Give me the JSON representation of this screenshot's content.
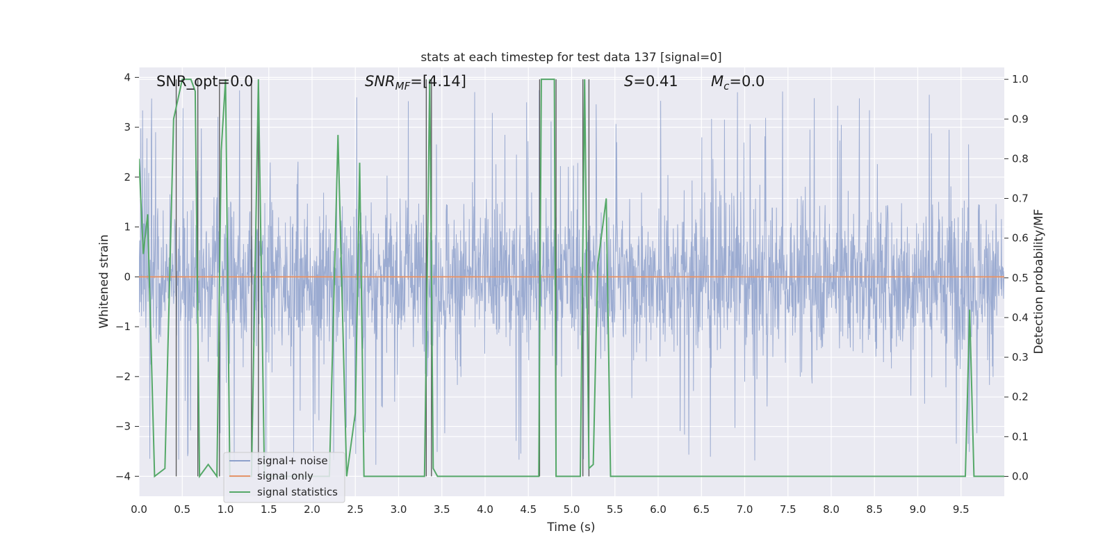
{
  "chart_data": {
    "type": "line",
    "title": "stats at each timestep for test data 137 [signal=0]",
    "xlabel": "Time (s)",
    "ylabel": "Whitened strain",
    "y2label": "Detection probability/MF",
    "xlim": [
      0,
      10
    ],
    "ylim": [
      -4.4,
      4.2
    ],
    "y2lim": [
      -0.05,
      1.03
    ],
    "xticks": [
      "0.0",
      "0.5",
      "1.0",
      "1.5",
      "2.0",
      "2.5",
      "3.0",
      "3.5",
      "4.0",
      "4.5",
      "5.0",
      "5.5",
      "6.0",
      "6.5",
      "7.0",
      "7.5",
      "8.0",
      "8.5",
      "9.0",
      "9.5"
    ],
    "yticks": [
      "−4",
      "−3",
      "−2",
      "−1",
      "0",
      "1",
      "2",
      "3",
      "4"
    ],
    "y2ticks": [
      "0.0",
      "0.1",
      "0.2",
      "0.3",
      "0.4",
      "0.5",
      "0.6",
      "0.7",
      "0.8",
      "0.9",
      "1.0"
    ],
    "grid": true,
    "legend_position": "lower-left",
    "annotations": {
      "snr_opt": "SNR_opt=0.0",
      "snr_mf_var": "SNR",
      "snr_mf_sub": "MF",
      "snr_mf_val": "=[4.14]",
      "s_var": "S",
      "s_val": "=0.41",
      "mc_var": "M",
      "mc_sub": "c",
      "mc_val": "=0.0"
    },
    "series": [
      {
        "name": "signal+ noise",
        "color": "#8da0cb",
        "kind": "noise",
        "envelope": 2.0,
        "peak_max": 3.8
      },
      {
        "name": "signal only",
        "color": "#e5946a",
        "kind": "constant",
        "value": 0.0
      },
      {
        "name": "signal statistics",
        "color": "#55a868",
        "kind": "line",
        "axis": "right",
        "x": [
          0.0,
          0.05,
          0.1,
          0.18,
          0.3,
          0.4,
          0.5,
          0.55,
          0.6,
          0.65,
          0.7,
          0.8,
          0.9,
          0.95,
          1.0,
          1.05,
          1.1,
          1.2,
          1.3,
          1.38,
          1.45,
          1.55,
          1.7,
          2.0,
          2.2,
          2.3,
          2.4,
          2.5,
          2.55,
          2.6,
          3.0,
          3.3,
          3.36,
          3.4,
          3.45,
          3.5,
          4.0,
          4.5,
          4.62,
          4.65,
          4.8,
          4.82,
          4.95,
          5.1,
          5.15,
          5.2,
          5.25,
          5.3,
          5.4,
          5.45,
          5.5,
          5.8,
          6.0,
          7.0,
          8.0,
          9.0,
          9.55,
          9.6,
          9.65,
          9.7,
          10.0
        ],
        "y": [
          0.8,
          0.56,
          0.66,
          0.0,
          0.02,
          0.9,
          1.0,
          1.0,
          1.0,
          0.97,
          0.0,
          0.03,
          0.0,
          0.82,
          1.0,
          0.0,
          0.0,
          0.0,
          0.0,
          1.0,
          0.0,
          0.0,
          0.0,
          0.0,
          0.0,
          0.86,
          0.0,
          0.16,
          0.79,
          0.0,
          0.0,
          0.0,
          1.0,
          0.02,
          0.0,
          0.0,
          0.0,
          0.0,
          0.0,
          1.0,
          1.0,
          0.0,
          0.0,
          0.0,
          1.0,
          0.02,
          0.03,
          0.53,
          0.7,
          0.0,
          0.0,
          0.0,
          0.0,
          0.0,
          0.0,
          0.0,
          0.0,
          0.42,
          0.0,
          0.0,
          0.0
        ]
      },
      {
        "name": "",
        "color": "#555555",
        "kind": "vlines",
        "x": [
          0.43,
          0.68,
          0.93,
          1.3,
          1.38,
          3.32,
          3.38,
          4.63,
          4.82,
          5.13,
          5.2
        ]
      }
    ]
  }
}
